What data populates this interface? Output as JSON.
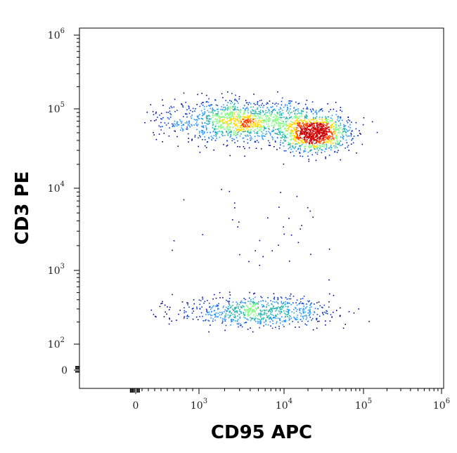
{
  "chart_data": {
    "type": "scatter",
    "title": "",
    "xlabel": "CD95 APC",
    "ylabel": "CD3 PE",
    "x_scale": "biexponential",
    "y_scale": "biexponential",
    "x_ticks": [
      {
        "value": 0,
        "base": "0",
        "exp": ""
      },
      {
        "value": 1000,
        "base": "10",
        "exp": "3"
      },
      {
        "value": 10000,
        "base": "10",
        "exp": "4"
      },
      {
        "value": 100000,
        "base": "10",
        "exp": "5"
      },
      {
        "value": 1000000,
        "base": "10",
        "exp": "6"
      }
    ],
    "y_ticks": [
      {
        "value": 0,
        "base": "0",
        "exp": ""
      },
      {
        "value": 100,
        "base": "10",
        "exp": "2"
      },
      {
        "value": 1000,
        "base": "10",
        "exp": "3"
      },
      {
        "value": 10000,
        "base": "10",
        "exp": "4"
      },
      {
        "value": 100000,
        "base": "10",
        "exp": "5"
      },
      {
        "value": 1000000,
        "base": "10",
        "exp": "6"
      }
    ],
    "density_colors": [
      "#00008b",
      "#0033cc",
      "#1e90ff",
      "#20b2aa",
      "#7fff7f",
      "#ffd700",
      "#ff4500",
      "#cc0000"
    ],
    "populations": [
      {
        "x_log10_center": 3.5,
        "y_log10_center": 4.85,
        "x_log10_sd": 0.42,
        "y_log10_sd": 0.13,
        "count": 1300
      },
      {
        "x_log10_center": 4.38,
        "y_log10_center": 4.7,
        "x_log10_sd": 0.22,
        "y_log10_sd": 0.12,
        "count": 1100
      },
      {
        "x_log10_center": 3.7,
        "y_log10_center": 2.45,
        "x_log10_sd": 0.45,
        "y_log10_sd": 0.1,
        "count": 750
      },
      {
        "x_log10_center": 3.8,
        "y_log10_center": 3.5,
        "x_log10_sd": 0.5,
        "y_log10_sd": 0.4,
        "count": 40
      }
    ]
  }
}
